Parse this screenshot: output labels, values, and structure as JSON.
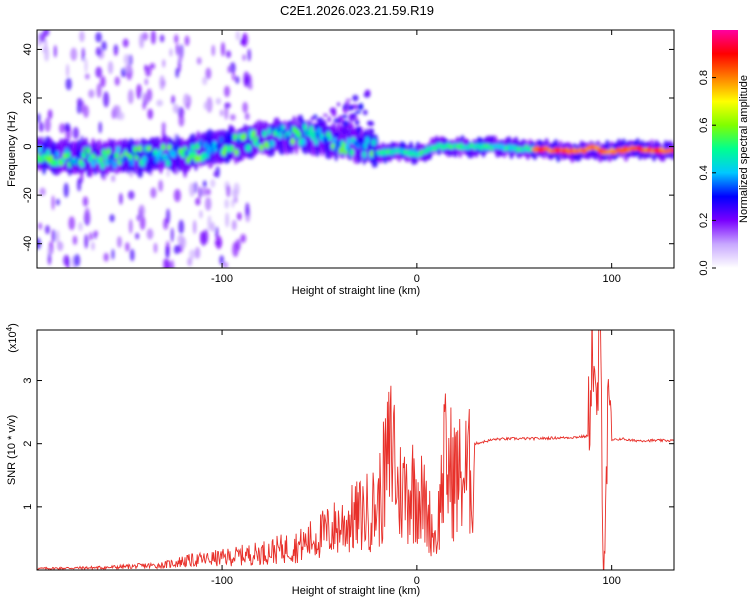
{
  "chart_data": [
    {
      "type": "heatmap",
      "title": "C2E1.2026.023.21.59.R19",
      "xlabel": "Height of straight line (km)",
      "ylabel": "Frequency (Hz)",
      "xlim": [
        -195,
        132
      ],
      "ylim": [
        -50,
        48
      ],
      "xticks": [
        -100,
        0,
        100
      ],
      "xtick_labels": [
        "-100",
        "0",
        "100"
      ],
      "yticks": [
        -40,
        -20,
        0,
        20,
        40
      ],
      "ytick_labels": [
        "-40",
        "-20",
        "0",
        "20",
        "40"
      ],
      "ridge": {
        "x": [
          -195,
          -180,
          -160,
          -140,
          -120,
          -100,
          -80,
          -60,
          -40,
          -25,
          -20,
          -10,
          0,
          10,
          30,
          60,
          80,
          85,
          90,
          95,
          100,
          110,
          132
        ],
        "frequency": [
          -4,
          -4,
          -5,
          -4,
          -3,
          0,
          3,
          5,
          2,
          0,
          -3,
          -2,
          -3,
          0,
          0,
          -1,
          -2,
          -2,
          0,
          -2,
          -2,
          -1,
          -2
        ]
      },
      "colorbar": {
        "label": "Normalized spectral amplitude",
        "range": [
          0,
          1
        ],
        "ticks": [
          0.0,
          0.2,
          0.4,
          0.6,
          0.8
        ],
        "tick_labels": [
          "0.0",
          "0.2",
          "0.4",
          "0.6",
          "0.8"
        ],
        "colors": [
          "#ffffff",
          "#c8a8ff",
          "#7a00ff",
          "#0000ff",
          "#00c8ff",
          "#00ff90",
          "#80ff00",
          "#ffff00",
          "#ff8000",
          "#ff0000",
          "#ff00a0"
        ]
      }
    },
    {
      "type": "line",
      "xlabel": "Height of straight line (km)",
      "ylabel": "SNR (10 * v/v)",
      "y_multiplier": "(x10",
      "y_multiplier_exp": "4",
      "y_multiplier_close": ")",
      "xlim": [
        -195,
        132
      ],
      "ylim": [
        0,
        3.8
      ],
      "xticks": [
        -100,
        0,
        100
      ],
      "xtick_labels": [
        "-100",
        "0",
        "100"
      ],
      "yticks": [
        1,
        2,
        3
      ],
      "ytick_labels": [
        "1",
        "2",
        "3"
      ],
      "series": [
        {
          "name": "SNR",
          "color": "#e8302a",
          "x": [
            -195,
            -160,
            -130,
            -120,
            -100,
            -80,
            -60,
            -50,
            -40,
            -30,
            -20,
            -12,
            -10,
            -5,
            0,
            5,
            10,
            14,
            20,
            30,
            40,
            50,
            60,
            70,
            80,
            88,
            90,
            92,
            94,
            96,
            98,
            100,
            105,
            110,
            120,
            132
          ],
          "y": [
            0.03,
            0.05,
            0.1,
            0.18,
            0.25,
            0.35,
            0.5,
            0.7,
            0.9,
            1.1,
            1.3,
            2.7,
            1.6,
            1.65,
            1.7,
            1.2,
            0.6,
            2.2,
            1.9,
            2.0,
            2.07,
            2.08,
            2.08,
            2.09,
            2.1,
            2.12,
            3.7,
            2.2,
            3.8,
            0.3,
            2.3,
            2.05,
            2.08,
            2.05,
            2.05,
            2.05
          ]
        }
      ]
    }
  ]
}
